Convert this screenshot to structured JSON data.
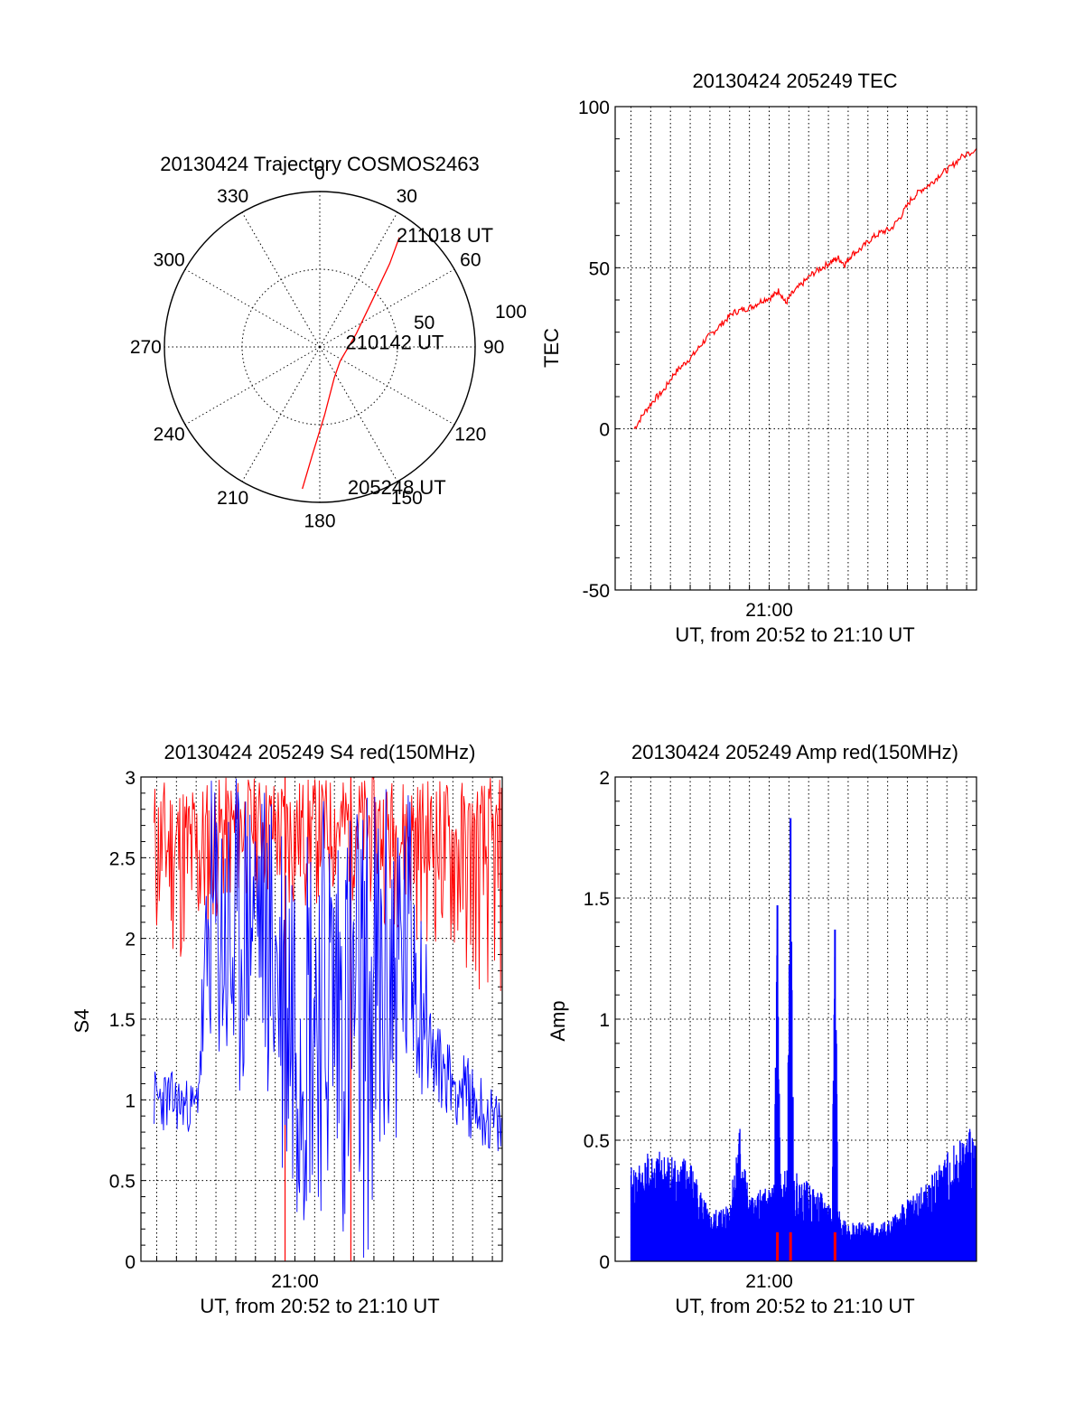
{
  "colors": {
    "red": "#ff0000",
    "blue": "#0000ff",
    "black": "#000000",
    "background": "#ffffff"
  },
  "chart_data": [
    {
      "type": "polar",
      "title": "20130424 Trajectory COSMOS2463",
      "r_max": 100,
      "rings": [
        50,
        100
      ],
      "ring_labels": [
        "50",
        "100"
      ],
      "azimuth_labels": [
        {
          "deg": 0,
          "label": "0"
        },
        {
          "deg": 30,
          "label": "30"
        },
        {
          "deg": 60,
          "label": "60"
        },
        {
          "deg": 90,
          "label": "90"
        },
        {
          "deg": 120,
          "label": "120"
        },
        {
          "deg": 150,
          "label": "150"
        },
        {
          "deg": 180,
          "label": "180"
        },
        {
          "deg": 210,
          "label": "210"
        },
        {
          "deg": 240,
          "label": "240"
        },
        {
          "deg": 270,
          "label": "270"
        },
        {
          "deg": 300,
          "label": "300"
        },
        {
          "deg": 330,
          "label": "330"
        }
      ],
      "track": [
        {
          "az": 187,
          "r": 92
        },
        {
          "az": 184,
          "r": 70
        },
        {
          "az": 176,
          "r": 44
        },
        {
          "az": 155,
          "r": 22
        },
        {
          "az": 125,
          "r": 16
        },
        {
          "az": 70,
          "r": 25
        },
        {
          "az": 47,
          "r": 48
        },
        {
          "az": 40,
          "r": 70
        },
        {
          "az": 36,
          "r": 87
        }
      ],
      "annotations": [
        {
          "text": "211018 UT",
          "az": 35,
          "r": 88
        },
        {
          "text": "210142 UT",
          "az": 80,
          "r": 18
        },
        {
          "text": "205248 UT",
          "az": 168,
          "r": 92
        }
      ],
      "series_color": "red"
    },
    {
      "type": "line",
      "title": "20130424 205249 TEC",
      "xlabel": "UT, from 20:52 to 21:10 UT",
      "ylabel": "TEC",
      "xlim": [
        "20:52:12",
        "21:10:30"
      ],
      "ylim": [
        -50,
        100
      ],
      "yticks": [
        -50,
        0,
        50,
        100
      ],
      "xtick_labels": [
        {
          "t": "21:00",
          "label": "21:00"
        }
      ],
      "minor_x_gridlines_every_minutes": 1,
      "series": [
        {
          "color": "red",
          "points": [
            [
              "20:53:10",
              0
            ],
            [
              "20:53:40",
              5
            ],
            [
              "20:54:10",
              9
            ],
            [
              "20:54:40",
              12
            ],
            [
              "20:55:10",
              17
            ],
            [
              "20:55:40",
              20
            ],
            [
              "20:56:10",
              23
            ],
            [
              "20:56:40",
              27
            ],
            [
              "20:57:10",
              30
            ],
            [
              "20:57:40",
              33
            ],
            [
              "20:58:10",
              36
            ],
            [
              "20:58:40",
              37
            ],
            [
              "20:59:10",
              38
            ],
            [
              "20:59:40",
              40
            ],
            [
              "21:00:10",
              41
            ],
            [
              "21:00:30",
              43
            ],
            [
              "21:00:50",
              39
            ],
            [
              "21:01:10",
              42
            ],
            [
              "21:01:40",
              45
            ],
            [
              "21:02:10",
              48
            ],
            [
              "21:02:40",
              50
            ],
            [
              "21:03:10",
              52
            ],
            [
              "21:03:30",
              53
            ],
            [
              "21:03:50",
              51
            ],
            [
              "21:04:10",
              54
            ],
            [
              "21:04:40",
              56
            ],
            [
              "21:05:10",
              59
            ],
            [
              "21:05:40",
              61
            ],
            [
              "21:06:10",
              62
            ],
            [
              "21:06:40",
              66
            ],
            [
              "21:07:10",
              71
            ],
            [
              "21:07:40",
              74
            ],
            [
              "21:08:10",
              76
            ],
            [
              "21:08:40",
              79
            ],
            [
              "21:09:10",
              81
            ],
            [
              "21:09:40",
              84
            ],
            [
              "21:10:30",
              87
            ]
          ]
        }
      ]
    },
    {
      "type": "line",
      "title": "20130424 205249 S4 red(150MHz)",
      "xlabel": "UT, from 20:52 to 21:10 UT",
      "ylabel": "S4",
      "xlim": [
        "20:52:12",
        "21:10:30"
      ],
      "ylim": [
        0,
        3
      ],
      "yticks": [
        0,
        0.5,
        1,
        1.5,
        2,
        2.5,
        3
      ],
      "ytick_labels": [
        "0",
        "0.5",
        "1",
        "1.5",
        "2",
        "2.5",
        "3"
      ],
      "xtick_labels": [
        {
          "t": "21:00",
          "label": "21:00"
        }
      ],
      "minor_x_gridlines_every_minutes": 1,
      "series": [
        {
          "color": "red",
          "description_level": "dense scintillation spikes clipped at top of axis",
          "envelope": [
            [
              "20:52:12",
              1.7,
              3.0
            ],
            [
              "20:53:30",
              1.8,
              3.0
            ],
            [
              "20:55:00",
              1.6,
              3.0
            ],
            [
              "20:56:00",
              2.0,
              3.0
            ],
            [
              "20:58:00",
              2.2,
              3.0
            ],
            [
              "20:59:40",
              2.0,
              3.0
            ],
            [
              "21:01:00",
              2.1,
              3.0
            ],
            [
              "21:03:00",
              2.2,
              3.0
            ],
            [
              "21:05:00",
              2.0,
              3.0
            ],
            [
              "21:07:00",
              1.9,
              3.0
            ],
            [
              "21:08:30",
              1.6,
              3.0
            ],
            [
              "21:10:30",
              1.5,
              3.0
            ]
          ],
          "dips": [
            "20:59:30",
            "21:02:50"
          ]
        },
        {
          "color": "blue",
          "envelope": [
            [
              "20:52:12",
              0.8,
              1.2
            ],
            [
              "20:53:30",
              0.8,
              1.2
            ],
            [
              "20:55:00",
              0.8,
              1.1
            ],
            [
              "20:55:45",
              1.3,
              3.0
            ],
            [
              "20:57:00",
              0.7,
              3.0
            ],
            [
              "20:58:00",
              1.5,
              3.0
            ],
            [
              "20:59:30",
              0.3,
              3.0
            ],
            [
              "21:00:30",
              0.2,
              3.0
            ],
            [
              "21:01:30",
              0.3,
              3.0
            ],
            [
              "21:03:00",
              0.0,
              3.0
            ],
            [
              "21:04:00",
              0.0,
              3.0
            ],
            [
              "21:05:00",
              0.6,
              3.0
            ],
            [
              "21:06:00",
              1.0,
              3.0
            ],
            [
              "21:07:00",
              1.0,
              1.5
            ],
            [
              "21:08:30",
              0.8,
              1.3
            ],
            [
              "21:10:30",
              0.6,
              1.0
            ]
          ]
        }
      ]
    },
    {
      "type": "line",
      "title": "20130424 205249 Amp red(150MHz)",
      "xlabel": "UT, from 20:52 to 21:10 UT",
      "ylabel": "Amp",
      "xlim": [
        "20:52:12",
        "21:10:30"
      ],
      "ylim": [
        0,
        2
      ],
      "yticks": [
        0,
        0.5,
        1,
        1.5,
        2
      ],
      "ytick_labels": [
        "0",
        "0.5",
        "1",
        "1.5",
        "2"
      ],
      "xtick_labels": [
        {
          "t": "21:00",
          "label": "21:00"
        }
      ],
      "minor_x_gridlines_every_minutes": 1,
      "series": [
        {
          "color": "blue",
          "baseline_envelope": [
            [
              "20:53:00",
              0.3
            ],
            [
              "20:54:00",
              0.35
            ],
            [
              "20:55:00",
              0.35
            ],
            [
              "20:56:00",
              0.33
            ],
            [
              "20:57:00",
              0.15
            ],
            [
              "20:58:00",
              0.2
            ],
            [
              "20:58:30",
              0.45
            ],
            [
              "20:59:00",
              0.2
            ],
            [
              "21:00:00",
              0.25
            ],
            [
              "21:01:00",
              0.3
            ],
            [
              "21:02:00",
              0.25
            ],
            [
              "21:03:00",
              0.2
            ],
            [
              "21:04:00",
              0.13
            ],
            [
              "21:05:00",
              0.12
            ],
            [
              "21:06:00",
              0.13
            ],
            [
              "21:07:00",
              0.2
            ],
            [
              "21:08:00",
              0.25
            ],
            [
              "21:09:00",
              0.35
            ],
            [
              "21:10:30",
              0.45
            ]
          ],
          "peaks": [
            {
              "t": "21:00:25",
              "value": 1.47
            },
            {
              "t": "21:01:05",
              "value": 1.83
            },
            {
              "t": "21:03:20",
              "value": 1.37
            }
          ]
        },
        {
          "color": "red",
          "spikes": [
            {
              "t": "21:00:25",
              "value": 0.12
            },
            {
              "t": "21:01:05",
              "value": 0.12
            },
            {
              "t": "21:03:20",
              "value": 0.12
            }
          ]
        }
      ]
    }
  ]
}
